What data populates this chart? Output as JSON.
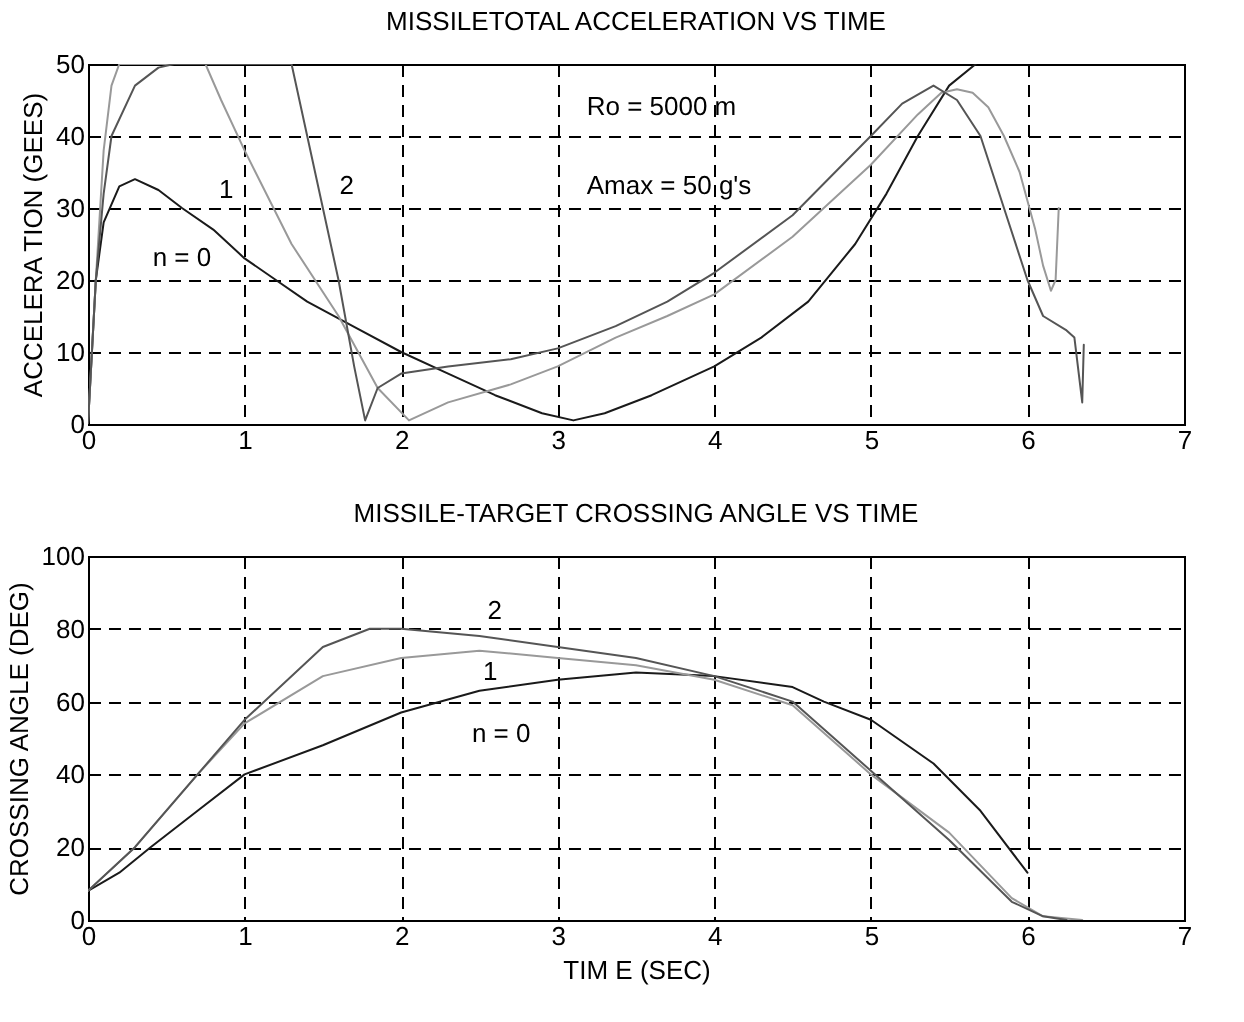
{
  "chart_data": [
    {
      "type": "line",
      "title": "MISSILETOTAL ACCELERATION VS TIME",
      "ylabel": "ACCELERA TION (GEES)",
      "xlim": [
        0,
        7
      ],
      "xticks": [
        0,
        1,
        2,
        3,
        4,
        5,
        6,
        7
      ],
      "ylim": [
        0,
        50
      ],
      "yticks": [
        0,
        10,
        20,
        30,
        40,
        50
      ],
      "grid": true,
      "line_style": "solid",
      "marker": "none",
      "series": [
        {
          "name": "n = 0",
          "color": "#1a1a1a",
          "x": [
            0,
            0.05,
            0.1,
            0.2,
            0.3,
            0.45,
            0.6,
            0.8,
            1.0,
            1.2,
            1.4,
            1.7,
            2.0,
            2.3,
            2.6,
            2.9,
            3.1,
            3.3,
            3.6,
            4.0,
            4.3,
            4.6,
            4.9,
            5.1,
            5.3,
            5.5,
            5.67
          ],
          "values": [
            0,
            20,
            28,
            33,
            34,
            32.5,
            30,
            27,
            23,
            20,
            17,
            13.5,
            10,
            7,
            4,
            1.5,
            0.5,
            1.5,
            4,
            8,
            12,
            17,
            25,
            32,
            40,
            47,
            50
          ]
        },
        {
          "name": "1",
          "color": "#999999",
          "x": [
            0,
            0.05,
            0.1,
            0.15,
            0.2,
            0.75,
            0.85,
            1.0,
            1.3,
            1.6,
            1.85,
            2.05,
            2.3,
            2.7,
            3.0,
            3.37,
            3.7,
            4.0,
            4.5,
            5.0,
            5.3,
            5.45,
            5.55,
            5.65,
            5.75,
            5.85,
            5.95,
            6.05,
            6.1,
            6.15,
            6.18,
            6.2
          ],
          "values": [
            0,
            20,
            38,
            47,
            50,
            50,
            45,
            38,
            25,
            15,
            5,
            0.5,
            3,
            5.5,
            8,
            12,
            15,
            18,
            26,
            36,
            43,
            46,
            46.5,
            46,
            44,
            40,
            35,
            27,
            22,
            18.5,
            20,
            30
          ]
        },
        {
          "name": "2",
          "color": "#555555",
          "x": [
            0,
            0.05,
            0.1,
            0.15,
            0.3,
            0.45,
            0.55,
            1.3,
            1.4,
            1.5,
            1.6,
            1.7,
            1.77,
            1.85,
            2.0,
            2.3,
            2.7,
            3.0,
            3.37,
            3.7,
            4.0,
            4.5,
            5.0,
            5.2,
            5.4,
            5.55,
            5.7,
            5.85,
            6.0,
            6.1,
            6.25,
            6.3,
            6.35,
            6.36
          ],
          "values": [
            0,
            20,
            32,
            40,
            47,
            49.5,
            50,
            50,
            40,
            30,
            20,
            8,
            0.5,
            5,
            7,
            8,
            9,
            10.5,
            13.6,
            17,
            21,
            29,
            40,
            44.5,
            47,
            45,
            40,
            30,
            20,
            15,
            13,
            12,
            3,
            11
          ]
        }
      ],
      "annotations": [
        "Ro = 5000   m",
        "Amax = 50 g's"
      ]
    },
    {
      "type": "line",
      "title": "MISSILE-TARGET CROSSING ANGLE VS TIME",
      "xlabel": "TIM E  (SEC)",
      "ylabel": "CROSSING ANGLE (DEG)",
      "xlim": [
        0,
        7
      ],
      "xticks": [
        0,
        1,
        2,
        3,
        4,
        5,
        6,
        7
      ],
      "ylim": [
        0,
        100
      ],
      "yticks": [
        0,
        20,
        40,
        60,
        80,
        100
      ],
      "grid": true,
      "line_style": "solid",
      "marker": "none",
      "series": [
        {
          "name": "n = 0",
          "color": "#1a1a1a",
          "x": [
            0,
            0.2,
            0.4,
            0.7,
            1.0,
            1.5,
            2.0,
            2.5,
            3.0,
            3.5,
            4.0,
            4.5,
            4.7,
            5.0,
            5.4,
            5.7,
            6.0
          ],
          "values": [
            8,
            13,
            20,
            30,
            40,
            48,
            57,
            63,
            66,
            68,
            67,
            64,
            60,
            55,
            43,
            30,
            13
          ]
        },
        {
          "name": "1",
          "color": "#999999",
          "x": [
            0,
            0.3,
            0.7,
            1.0,
            1.5,
            2.0,
            2.5,
            3.0,
            3.5,
            4.0,
            4.5,
            5.0,
            5.5,
            5.9,
            6.1,
            6.35
          ],
          "values": [
            8,
            20,
            40,
            54,
            67,
            72,
            74,
            72,
            70,
            66,
            59,
            40,
            24,
            6,
            1,
            0
          ]
        },
        {
          "name": "2",
          "color": "#555555",
          "x": [
            0,
            0.3,
            0.7,
            1.0,
            1.5,
            1.8,
            2.0,
            2.5,
            3.0,
            3.5,
            4.0,
            4.5,
            5.0,
            5.5,
            5.9,
            6.1,
            6.25
          ],
          "values": [
            8,
            20,
            40,
            55,
            75,
            80,
            80,
            78,
            75,
            72,
            67,
            60,
            41,
            22,
            5,
            1,
            0
          ]
        }
      ]
    }
  ]
}
